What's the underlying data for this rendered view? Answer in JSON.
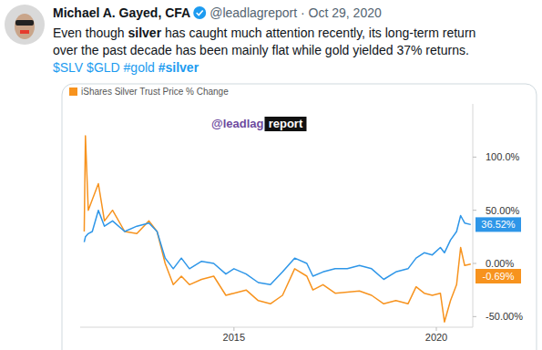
{
  "tweet": {
    "name": "Michael A. Gayed, CFA",
    "handle": "@leadlagreport · Oct 29, 2020",
    "text_lines": [
      [
        {
          "text": "Even though "
        },
        {
          "text": "silver",
          "bold": true
        },
        {
          "text": " has caught much attention recently, its long-term return"
        }
      ],
      [
        {
          "text": "over the past decade has been mainly flat while gold yielded 37% returns."
        }
      ],
      [
        {
          "text": "$SLV $GLD #gold ",
          "link": true
        },
        {
          "text": "#silver",
          "link": true,
          "bold": true
        }
      ]
    ]
  },
  "chart_data": {
    "type": "line",
    "watermark": {
      "text": "@leadlag",
      "badge": "report"
    },
    "x": [
      2011.3,
      2011.33,
      2011.4,
      2011.5,
      2011.65,
      2011.8,
      2012.0,
      2012.3,
      2012.6,
      2012.9,
      2013.1,
      2013.3,
      2013.5,
      2013.7,
      2013.9,
      2014.2,
      2014.5,
      2014.8,
      2015.0,
      2015.3,
      2015.6,
      2015.9,
      2016.2,
      2016.5,
      2016.8,
      2016.95,
      2017.2,
      2017.5,
      2017.8,
      2018.1,
      2018.4,
      2018.7,
      2019.0,
      2019.3,
      2019.5,
      2019.7,
      2019.9,
      2020.1,
      2020.2,
      2020.35,
      2020.5,
      2020.6,
      2020.7,
      2020.85
    ],
    "xlim": [
      2011.2,
      2020.9
    ],
    "xticks": [
      2015,
      2020
    ],
    "ylim": [
      -60,
      150
    ],
    "yticks": [
      {
        "value": 100,
        "label": "100.0%"
      },
      {
        "value": 50,
        "label": "50.00%"
      },
      {
        "value": 0,
        "label": "0.00%"
      },
      {
        "value": -50,
        "label": "-50.00%"
      }
    ],
    "grid": false,
    "legend": "top-left",
    "series": [
      {
        "name": "iShares Silver Trust Price % Change",
        "color": "#f7931e",
        "end_label": "-0.69%",
        "values": [
          30,
          120,
          50,
          60,
          75,
          40,
          50,
          30,
          28,
          40,
          30,
          0,
          -20,
          -12,
          -20,
          -15,
          -12,
          -30,
          -28,
          -25,
          -35,
          -38,
          -30,
          -5,
          -12,
          -25,
          -20,
          -28,
          -27,
          -26,
          -30,
          -38,
          -35,
          -38,
          -22,
          -28,
          -30,
          -28,
          -55,
          -35,
          -20,
          15,
          -2,
          -0.69
        ]
      },
      {
        "color": "#2e96e8",
        "end_label": "36.52%",
        "values": [
          20,
          25,
          28,
          30,
          50,
          35,
          40,
          30,
          35,
          38,
          30,
          5,
          -5,
          5,
          -5,
          2,
          0,
          -10,
          -5,
          -10,
          -18,
          -20,
          -8,
          5,
          0,
          -12,
          -8,
          -5,
          -5,
          -2,
          -5,
          -15,
          -8,
          -5,
          5,
          10,
          8,
          15,
          10,
          22,
          30,
          45,
          38,
          36.52
        ]
      }
    ]
  }
}
